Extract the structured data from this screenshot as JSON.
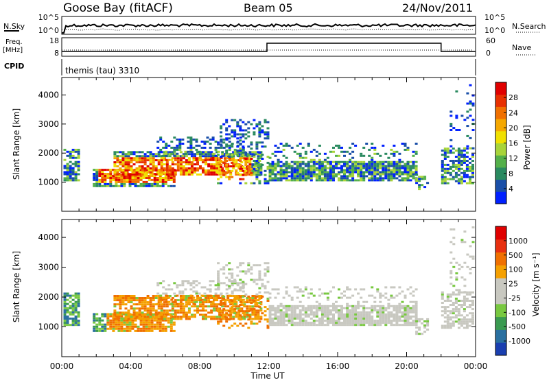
{
  "header": {
    "station": "Goose Bay (fitACF)",
    "beam": "Beam 05",
    "date": "24/Nov/2011"
  },
  "noise_panel": {
    "left_label": "N.Sky",
    "right_label": "N.Search",
    "left_ticks": [
      "10^5",
      "10^0"
    ],
    "right_ticks": [
      "10^5",
      "10^0"
    ]
  },
  "freq_panel": {
    "left_label_1": "Freq.",
    "left_label_2": "[MHz]",
    "right_label": "Nave",
    "left_ticks": [
      "18",
      "8"
    ],
    "right_ticks": [
      "60",
      "0"
    ]
  },
  "cpid": {
    "label": "CPID",
    "value": "themis (tau) 3310"
  },
  "chart_data": [
    {
      "type": "heatmap",
      "title": "",
      "xlabel": "Time UT",
      "ylabel": "Slant Range [km]",
      "x_ticks": [
        "00:00",
        "04:00",
        "08:00",
        "12:00",
        "16:00",
        "20:00",
        "00:00"
      ],
      "y_ticks": [
        1000,
        2000,
        3000,
        4000
      ],
      "ylim": [
        0,
        4600
      ],
      "colorbar": {
        "label": "Power [dB]",
        "ticks": [
          4,
          8,
          12,
          16,
          20,
          24,
          28
        ],
        "colors": [
          "#0020ff",
          "#1a4fa8",
          "#2a8a60",
          "#54b04a",
          "#a8d43a",
          "#f0e000",
          "#f5a800",
          "#f07000",
          "#e83000",
          "#e00000"
        ]
      }
    },
    {
      "type": "heatmap",
      "title": "",
      "xlabel": "Time UT",
      "ylabel": "Slant Range [km]",
      "x_ticks": [
        "00:00",
        "04:00",
        "08:00",
        "12:00",
        "16:00",
        "20:00",
        "00:00"
      ],
      "y_ticks": [
        1000,
        2000,
        3000,
        4000
      ],
      "ylim": [
        0,
        4600
      ],
      "colorbar": {
        "label": "Velocity [m s⁻¹]",
        "ticks": [
          1000,
          500,
          100,
          25,
          -25,
          -100,
          -500,
          -1000
        ],
        "colors": [
          "#1a3fb0",
          "#2a70a0",
          "#3a9a50",
          "#78c840",
          "#c8c8c0",
          "#c8c8c0",
          "#f5a000",
          "#f07000",
          "#e83010",
          "#e00000"
        ]
      }
    }
  ]
}
